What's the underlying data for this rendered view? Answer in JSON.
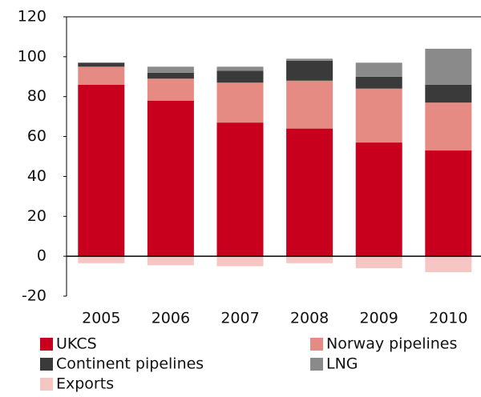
{
  "chart_data": {
    "type": "stacked_bar",
    "categories": [
      "2005",
      "2006",
      "2007",
      "2008",
      "2009",
      "2010"
    ],
    "series": [
      {
        "name": "UKCS",
        "color": "#c8001e",
        "values": [
          86,
          78,
          67,
          64,
          57,
          53
        ]
      },
      {
        "name": "Norway pipelines",
        "color": "#e58b83",
        "values": [
          9,
          11,
          20,
          24,
          27,
          24
        ]
      },
      {
        "name": "Continent pipelines",
        "color": "#3a3a3a",
        "values": [
          2,
          3,
          6,
          10,
          6,
          9
        ]
      },
      {
        "name": "LNG",
        "color": "#8a8a8a",
        "values": [
          0,
          3,
          2,
          1,
          7,
          18
        ]
      },
      {
        "name": "Exports",
        "color": "#f5c6c3",
        "values": [
          -3.5,
          -4.5,
          -5,
          -3.5,
          -6,
          -8
        ]
      }
    ],
    "ylim": [
      -20,
      120
    ],
    "yticks": [
      -20,
      0,
      20,
      40,
      60,
      80,
      100,
      120
    ],
    "grid": false
  }
}
